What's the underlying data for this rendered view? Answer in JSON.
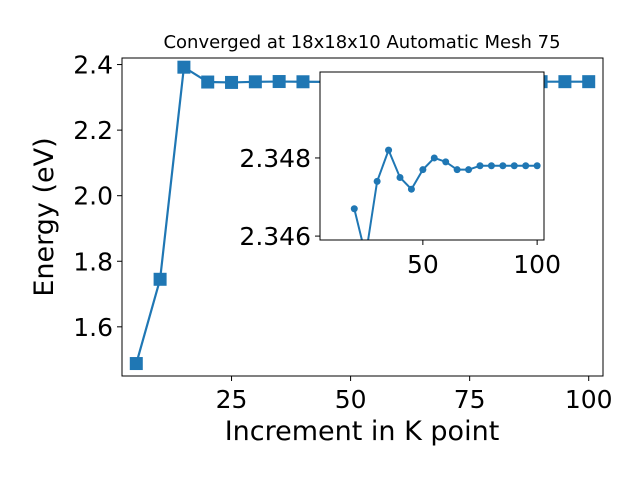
{
  "chart_data": [
    {
      "type": "line",
      "title": "Converged at 18x18x10 Automatic Mesh 75",
      "xlabel": "Increment in K point",
      "ylabel": "Energy (eV)",
      "xlim": [
        2,
        103
      ],
      "ylim": [
        1.45,
        2.42
      ],
      "xticks": [
        25,
        50,
        75,
        100
      ],
      "yticks": [
        1.6,
        1.8,
        2.0,
        2.2,
        2.4
      ],
      "xtick_labels": [
        "25",
        "50",
        "75",
        "100"
      ],
      "ytick_labels": [
        "1.6",
        "1.8",
        "2.0",
        "2.2",
        "2.4"
      ],
      "marker": "square",
      "color": "#1f77b4",
      "grid": false,
      "series": [
        {
          "x": [
            5,
            10,
            15,
            20,
            25,
            30,
            35,
            40,
            45,
            50,
            55,
            60,
            65,
            70,
            75,
            80,
            85,
            90,
            95,
            100
          ],
          "y": [
            1.488,
            1.745,
            2.392,
            2.3467,
            2.3455,
            2.3474,
            2.3482,
            2.3475,
            2.3472,
            2.3477,
            2.348,
            2.3479,
            2.3477,
            2.3477,
            2.3478,
            2.3478,
            2.3478,
            2.3478,
            2.3478,
            2.3478
          ]
        }
      ]
    },
    {
      "type": "line",
      "title": "",
      "xlabel": "",
      "ylabel": "",
      "xlim": [
        5,
        103
      ],
      "ylim": [
        2.3459,
        2.3502
      ],
      "xticks": [
        50,
        100
      ],
      "yticks": [
        2.346,
        2.348
      ],
      "xtick_labels": [
        "50",
        "100"
      ],
      "ytick_labels": [
        "2.346",
        "2.348"
      ],
      "marker": "circle",
      "color": "#1f77b4",
      "grid": false,
      "series": [
        {
          "x": [
            20,
            25,
            30,
            35,
            40,
            45,
            50,
            55,
            60,
            65,
            70,
            75,
            80,
            85,
            90,
            95,
            100
          ],
          "y": [
            2.3467,
            2.3455,
            2.3474,
            2.3482,
            2.3475,
            2.3472,
            2.3477,
            2.348,
            2.3479,
            2.3477,
            2.3477,
            2.3478,
            2.3478,
            2.3478,
            2.3478,
            2.3478,
            2.3478
          ]
        }
      ]
    }
  ]
}
